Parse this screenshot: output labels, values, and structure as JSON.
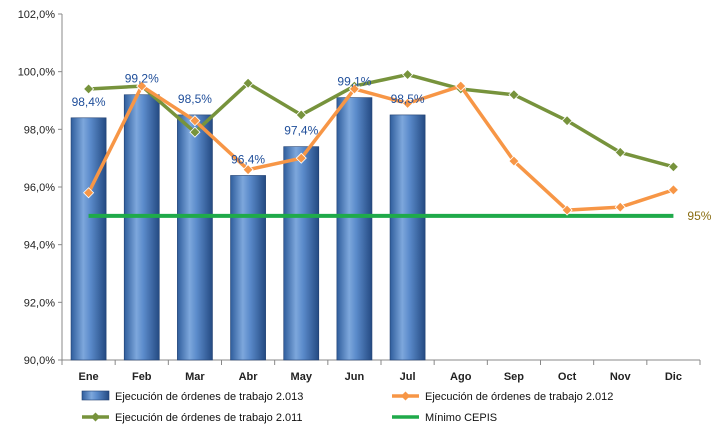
{
  "chart_data": {
    "type": "bar",
    "categories": [
      "Ene",
      "Feb",
      "Mar",
      "Abr",
      "May",
      "Jun",
      "Jul",
      "Ago",
      "Sep",
      "Oct",
      "Nov",
      "Dic"
    ],
    "ylim": [
      90,
      102
    ],
    "yticks": [
      "90,0%",
      "92,0%",
      "94,0%",
      "96,0%",
      "98,0%",
      "100,0%",
      "102,0%"
    ],
    "ytick_values": [
      90,
      92,
      94,
      96,
      98,
      100,
      102
    ],
    "grid": false,
    "legend_position": "bottom",
    "series": [
      {
        "name": "Ejecución de órdenes de trabajo 2.013",
        "kind": "bar",
        "color": "#4f81bd",
        "values": [
          98.4,
          99.2,
          98.5,
          96.4,
          97.4,
          99.1,
          98.5,
          null,
          null,
          null,
          null,
          null
        ],
        "labels": [
          "98,4%",
          "99,2%",
          "98,5%",
          "96,4%",
          "97,4%",
          "99,1%",
          "98,5%",
          "",
          "",
          "",
          "",
          ""
        ]
      },
      {
        "name": "Ejecución de órdenes de trabajo 2.012",
        "kind": "line",
        "color": "#f79646",
        "values": [
          95.8,
          99.5,
          98.3,
          96.6,
          97.0,
          99.4,
          98.9,
          99.5,
          96.9,
          95.2,
          95.3,
          95.9
        ]
      },
      {
        "name": "Ejecución de órdenes de trabajo 2.011",
        "kind": "line",
        "color": "#77933c",
        "values": [
          99.4,
          99.5,
          97.9,
          99.6,
          98.5,
          99.5,
          99.9,
          99.4,
          99.2,
          98.3,
          97.2,
          96.7
        ]
      },
      {
        "name": "Mínimo CEPIS",
        "kind": "reference",
        "color": "#1faa4a",
        "value": 95,
        "end_label": "95%"
      }
    ]
  }
}
